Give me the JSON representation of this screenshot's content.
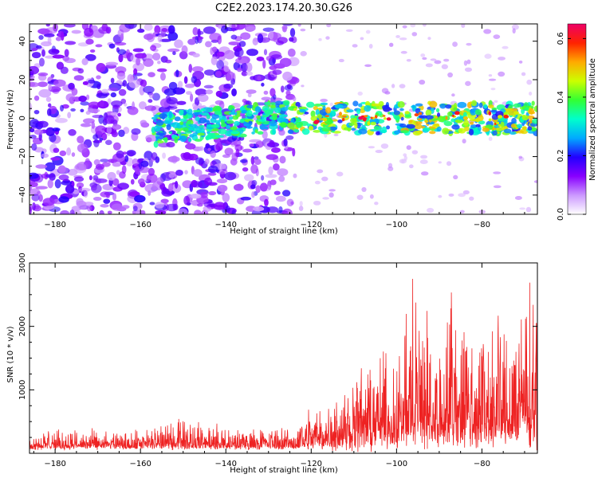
{
  "title": "C2E2.2023.174.20.30.G26",
  "chart_data": [
    {
      "type": "heatmap",
      "xlabel": "Height of straight line (km)",
      "ylabel": "Frequency (Hz)",
      "xlim": [
        -186,
        -67
      ],
      "ylim": [
        -50,
        49
      ],
      "x_ticks": [
        -180,
        -160,
        -140,
        -120,
        -100,
        -80
      ],
      "y_ticks": [
        -40,
        -20,
        0,
        20,
        40
      ],
      "colorbar": {
        "label": "Normalized spectral amplitude",
        "range": [
          0.0,
          0.65
        ],
        "ticks": [
          0.0,
          0.2,
          0.4,
          0.6
        ],
        "colors": [
          "#ffffff",
          "#cc99ff",
          "#8800ff",
          "#2200ff",
          "#00aaff",
          "#00ffcc",
          "#33ff33",
          "#ccff00",
          "#ffaa00",
          "#ff2200",
          "#ee0066"
        ]
      },
      "grid": false
    },
    {
      "type": "line",
      "xlabel": "Height of straight line (km)",
      "ylabel": "SNR (10 * v/v)",
      "xlim": [
        -186,
        -67
      ],
      "ylim": [
        0,
        3000
      ],
      "x_ticks": [
        -180,
        -160,
        -140,
        -120,
        -100,
        -80
      ],
      "y_ticks": [
        1000,
        2000,
        3000
      ],
      "color": "#ee2222",
      "series": [
        {
          "x": [
            -186,
            -180,
            -170,
            -160,
            -150,
            -140,
            -130,
            -124,
            -120,
            -115,
            -110,
            -105,
            -100,
            -96,
            -95,
            -90,
            -87,
            -86,
            -85,
            -80,
            -75,
            -70,
            -67
          ],
          "y": [
            250,
            300,
            280,
            290,
            500,
            320,
            330,
            320,
            750,
            900,
            1200,
            1400,
            1600,
            2400,
            2500,
            1600,
            3000,
            1900,
            2200,
            2000,
            2000,
            2500,
            2600
          ]
        }
      ],
      "grid": false
    }
  ]
}
